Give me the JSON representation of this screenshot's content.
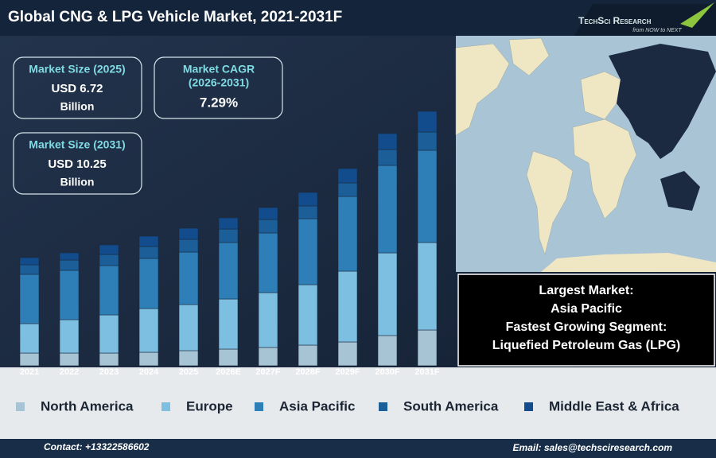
{
  "header": {
    "title": "Global CNG & LPG Vehicle Market, 2021-2031F",
    "logo": "TechSci Research",
    "logo_tagline": "from NOW to NEXT"
  },
  "stats": [
    {
      "label": "Market Size (2025)",
      "value": "USD 6.72",
      "unit": "Billion"
    },
    {
      "label": "Market CAGR",
      "period": "(2026-2031)",
      "value": "7.29%"
    },
    {
      "label": "Market Size (2031)",
      "value": "USD 10.25",
      "unit": "Billion"
    }
  ],
  "highlights": [
    "Largest Market:",
    "Asia Pacific",
    "Fastest Growing Segment:",
    "Liquefied Petroleum Gas (LPG)"
  ],
  "chart_data": {
    "type": "bar",
    "stacked": true,
    "legend": "bottom",
    "categories": [
      "2021",
      "2022",
      "2023",
      "2024",
      "2025",
      "2026E",
      "2027F",
      "2028F",
      "2029F",
      "2030F",
      "2031F"
    ],
    "ylim": [
      0,
      330
    ],
    "series": [
      {
        "name": "North America",
        "color": "#a6c4d4",
        "values": [
          16,
          16,
          16,
          17,
          19,
          21,
          23,
          26,
          30,
          38,
          45
        ]
      },
      {
        "name": "Europe",
        "color": "#7cbfe0",
        "values": [
          37,
          42,
          48,
          55,
          58,
          63,
          69,
          76,
          89,
          104,
          110
        ]
      },
      {
        "name": "Asia Pacific",
        "color": "#2e7fb8",
        "values": [
          62,
          62,
          62,
          63,
          66,
          71,
          75,
          83,
          94,
          110,
          116
        ]
      },
      {
        "name": "South America",
        "color": "#1b5e98",
        "values": [
          12,
          13,
          14,
          15,
          16,
          17,
          17,
          16,
          17,
          20,
          23
        ]
      },
      {
        "name": "Middle East & Africa",
        "color": "#124c8c",
        "values": [
          9,
          9,
          12,
          13,
          14,
          14,
          15,
          17,
          18,
          20,
          26
        ]
      }
    ]
  },
  "footer": {
    "contact": "Contact: +13322586602",
    "email": "Email: sales@techsciresearch.com"
  }
}
